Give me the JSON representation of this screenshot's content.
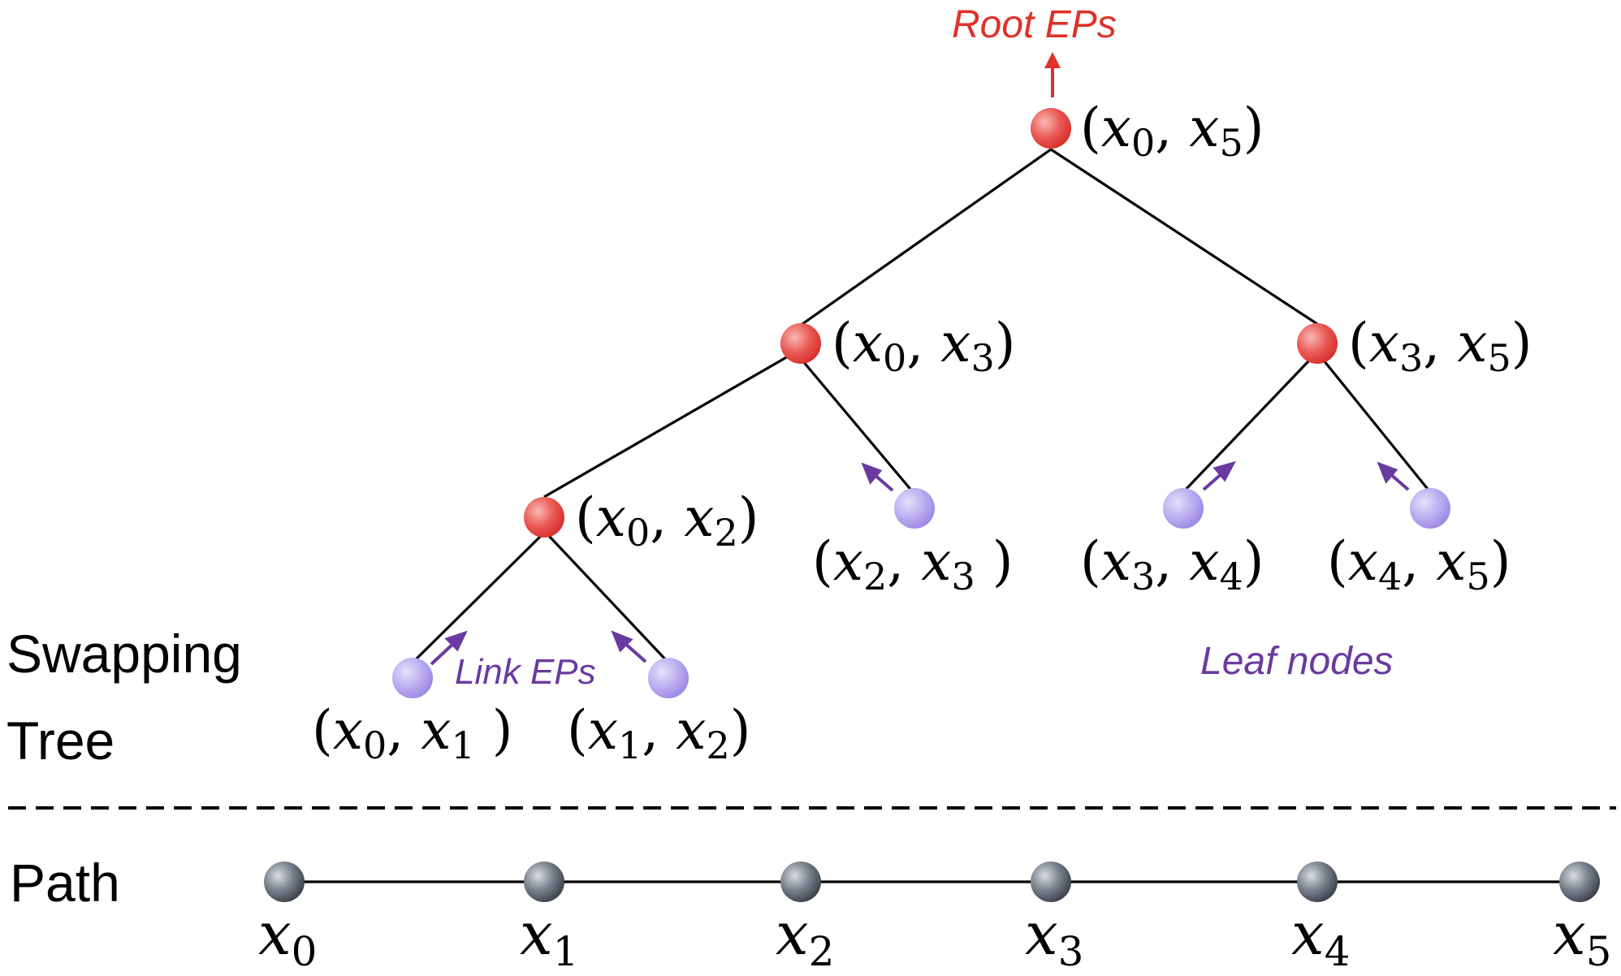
{
  "colors": {
    "root_ep": "#e0312b",
    "link_ep": "#6a3aa0",
    "edge": "#000000",
    "dash": "#000000",
    "text": "#000000"
  },
  "annotations": {
    "root_eps": "Root EPs",
    "link_eps": "Link EPs",
    "leaf_nodes": "Leaf nodes"
  },
  "section_labels": {
    "swapping": "Swapping",
    "tree": "Tree",
    "path": "Path"
  },
  "tree": {
    "internal_nodes": [
      {
        "id": "x0-x5",
        "a": "x",
        "a_sub": "0",
        "b": "x",
        "b_sub": "5"
      },
      {
        "id": "x0-x3",
        "a": "x",
        "a_sub": "0",
        "b": "x",
        "b_sub": "3"
      },
      {
        "id": "x3-x5",
        "a": "x",
        "a_sub": "3",
        "b": "x",
        "b_sub": "5"
      },
      {
        "id": "x0-x2",
        "a": "x",
        "a_sub": "0",
        "b": "x",
        "b_sub": "2"
      }
    ],
    "leaf_nodes": [
      {
        "id": "x2-x3",
        "a": "x",
        "a_sub": "2",
        "b": "x",
        "b_sub": "3"
      },
      {
        "id": "x3-x4",
        "a": "x",
        "a_sub": "3",
        "b": "x",
        "b_sub": "4"
      },
      {
        "id": "x4-x5",
        "a": "x",
        "a_sub": "4",
        "b": "x",
        "b_sub": "5"
      },
      {
        "id": "x0-x1",
        "a": "x",
        "a_sub": "0",
        "b": "x",
        "b_sub": "1"
      },
      {
        "id": "x1-x2",
        "a": "x",
        "a_sub": "1",
        "b": "x",
        "b_sub": "2"
      }
    ]
  },
  "path": {
    "nodes": [
      {
        "var": "x",
        "sub": "0"
      },
      {
        "var": "x",
        "sub": "1"
      },
      {
        "var": "x",
        "sub": "2"
      },
      {
        "var": "x",
        "sub": "3"
      },
      {
        "var": "x",
        "sub": "4"
      },
      {
        "var": "x",
        "sub": "5"
      }
    ]
  }
}
